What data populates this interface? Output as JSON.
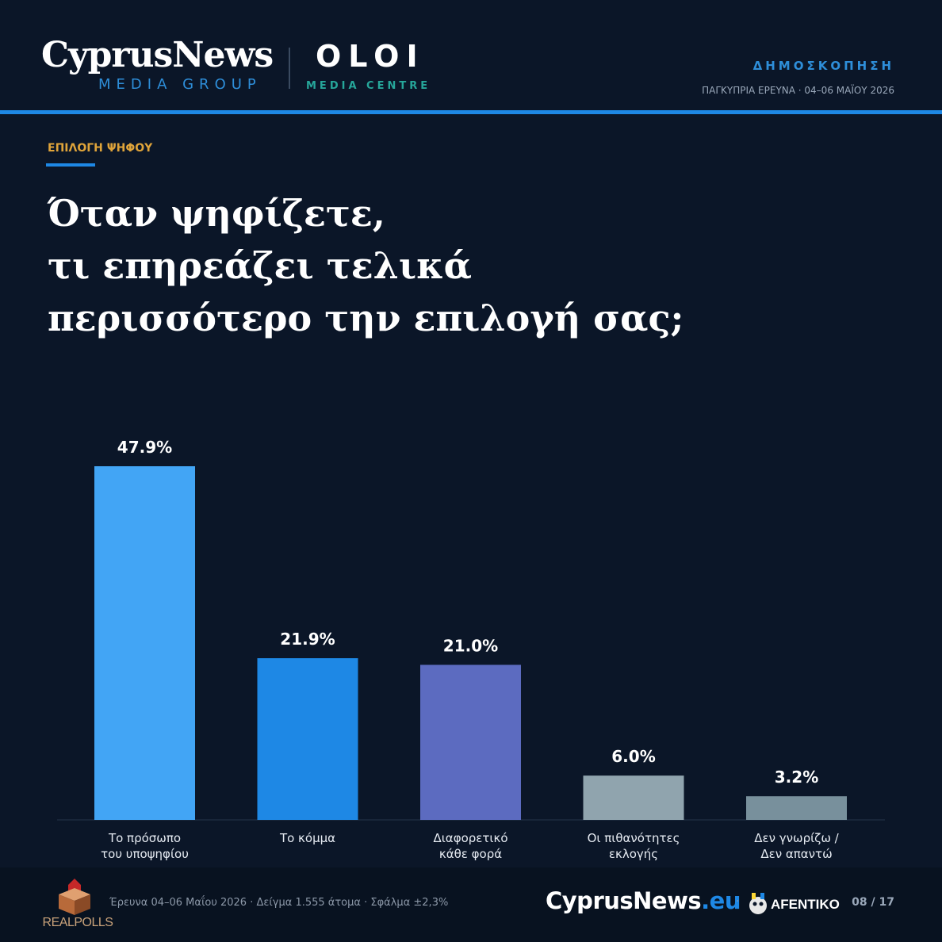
{
  "header": {
    "brand_main": "CyprusNews",
    "brand_sub": "MEDIA GROUP",
    "partner_main": "OLOI",
    "partner_sub": "MEDIA CENTRE",
    "kicker": "ΔΗΜΟΣΚΟΠΗΣΗ",
    "subtitle": "ΠΑΓΚΥΠΡΙΑ ΕΡΕΥΝΑ · 04–06 ΜΑΪΟΥ 2026"
  },
  "section_label": "ΕΠΙΛΟΓΗ ΨΗΦΟΥ",
  "title_lines": [
    "Όταν ψηφίζετε,",
    "τι επηρεάζει τελικά",
    "περισσότερο την επιλογή σας;"
  ],
  "chart_data": {
    "type": "bar",
    "title": "",
    "xlabel": "",
    "ylabel": "",
    "ylim": [
      0,
      47.9
    ],
    "grid": false,
    "categories": [
      [
        "Το πρόσωπο",
        "του υποψηφίου"
      ],
      [
        "Το κόμμα"
      ],
      [
        "Διαφορετικό",
        "κάθε φορά"
      ],
      [
        "Οι πιθανότητες",
        "εκλογής"
      ],
      [
        "Δεν γνωρίζω /",
        "Δεν απαντώ"
      ]
    ],
    "values": [
      47.9,
      21.9,
      21.0,
      6.0,
      3.2
    ],
    "value_labels": [
      "47.9%",
      "21.9%",
      "21.0%",
      "6.0%",
      "3.2%"
    ],
    "colors": [
      "#42a5f5",
      "#1e88e5",
      "#5c6bc0",
      "#90a4ae",
      "#78909c"
    ]
  },
  "footer": {
    "pollster_logo_text": "REALPOLLS",
    "survey_info": "Έρευνα 04–06 Μαΐου 2026 · Δείγμα 1.555 άτομα · Σφάλμα ±2,3%",
    "site_name": "CyprusNews",
    "site_tld": ".eu",
    "separator": "·",
    "partner_logo_text": "AFENTIKO",
    "page_indicator": "08 / 17"
  },
  "colors": {
    "background": "#0b1628",
    "accent": "#1e88e5",
    "label_gold": "#e0a43a"
  }
}
